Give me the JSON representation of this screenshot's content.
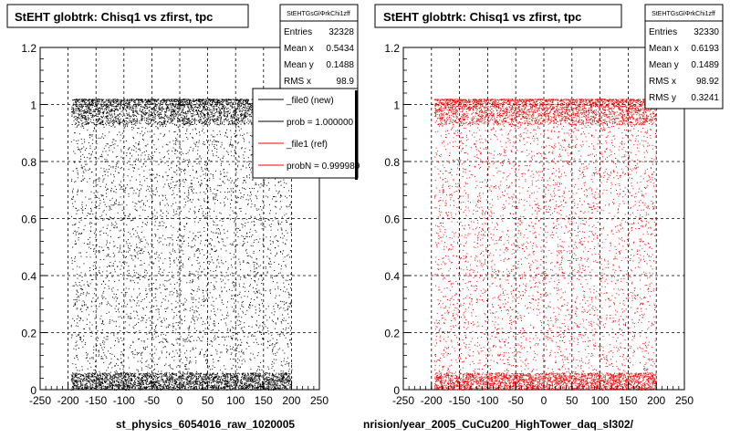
{
  "chart_data": [
    {
      "type": "scatter",
      "title": "StEHT globtrk: Chisq1 vs zfirst, tpc",
      "xlabel": "st_physics_6054016_raw_1020005",
      "ylabel": "",
      "xlim": [
        -250,
        250
      ],
      "ylim": [
        0,
        1.2
      ],
      "xticks": [
        "-250",
        "-200",
        "-150",
        "-100",
        "-50",
        "0",
        "50",
        "100",
        "150",
        "200",
        "250"
      ],
      "yticks": [
        "0",
        "0.2",
        "0.4",
        "0.6",
        "0.8",
        "1",
        "1.2"
      ],
      "grid": true,
      "marker_color": "#000000",
      "series": [
        {
          "name": "",
          "x_range": [
            -195,
            200
          ],
          "band": {
            "y_range": [
              0,
              0.06
            ],
            "density": "dense"
          },
          "top_cluster": {
            "y_range": [
              0.93,
              1.02
            ],
            "density": "dense"
          },
          "body": {
            "y_range": [
              0.06,
              1.0
            ],
            "density": "sparse"
          }
        }
      ],
      "stats": {
        "name": "StEHTGsGlΦrkChi1zff",
        "entries_label": "Entries",
        "entries": "32328",
        "meanx_label": "Mean x",
        "meanx": "0.5434",
        "meany_label": "Mean y",
        "meany": "0.1488",
        "rmsx_label": "RMS x",
        "rmsx": "98.9"
      },
      "legend": {
        "placement": "top-right",
        "entries": [
          {
            "label": "_file0 (new)",
            "color": "#000000"
          },
          {
            "label": "prob = 1.000000",
            "color": "#000000"
          },
          {
            "label": "_file1 (ref)",
            "color": "#ff0000"
          },
          {
            "label": "probN = 0.999989",
            "color": "#ff0000"
          }
        ]
      }
    },
    {
      "type": "scatter",
      "title": "StEHT globtrk: Chisq1 vs zfirst, tpc",
      "xlabel": "nrision/year_2005_CuCu200_HighTower_daq_sl302/",
      "ylabel": "",
      "xlim": [
        -250,
        250
      ],
      "ylim": [
        0,
        1.2
      ],
      "xticks": [
        "-250",
        "-200",
        "-150",
        "-100",
        "-50",
        "0",
        "50",
        "100",
        "150",
        "200",
        "250"
      ],
      "yticks": [
        "0",
        "0.2",
        "0.4",
        "0.6",
        "0.8",
        "1",
        "1.2"
      ],
      "grid": true,
      "marker_color": "#ff0000",
      "series": [
        {
          "name": "",
          "x_range": [
            -195,
            200
          ],
          "band": {
            "y_range": [
              0,
              0.06
            ],
            "density": "dense"
          },
          "top_cluster": {
            "y_range": [
              0.93,
              1.02
            ],
            "density": "dense"
          },
          "body": {
            "y_range": [
              0.06,
              1.0
            ],
            "density": "sparse"
          }
        }
      ],
      "stats": {
        "name": "StEHTGsGlΦrkChi1zff",
        "entries_label": "Entries",
        "entries": "32330",
        "meanx_label": "Mean x",
        "meanx": "0.6193",
        "meany_label": "Mean y",
        "meany": "0.1489",
        "rmsx_label": "RMS x",
        "rmsx": "98.92",
        "rmsy_label": "RMS y",
        "rmsy": "0.3241"
      }
    }
  ]
}
